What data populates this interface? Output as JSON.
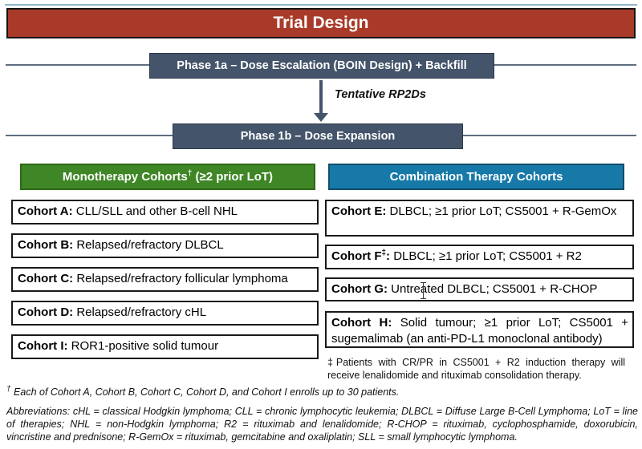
{
  "colors": {
    "banner_red": "#A93A29",
    "slate": "#44546A",
    "green": "#3E8626",
    "blue": "#1779A8"
  },
  "title": "Trial Design",
  "flow": {
    "phase1a": "Phase 1a – Dose Escalation (BOIN Design) + Backfill",
    "arrow_label": "Tentative RP2Ds",
    "phase1b": "Phase 1b – Dose Expansion"
  },
  "monotherapy": {
    "header": {
      "text": "Monotherapy Cohorts",
      "sup": "†",
      "suffix": " (≥2 prior LoT)"
    },
    "cohorts": [
      {
        "bold": "Cohort A",
        "sup": "",
        "colon": ":",
        "desc": " CLL/SLL and other B-cell NHL"
      },
      {
        "bold": "Cohort B",
        "sup": "",
        "colon": ":",
        "desc": " Relapsed/refractory DLBCL"
      },
      {
        "bold": "Cohort C",
        "sup": "",
        "colon": ":",
        "desc": " Relapsed/refractory follicular lymphoma"
      },
      {
        "bold": "Cohort D",
        "sup": "",
        "colon": ":",
        "desc": " Relapsed/refractory cHL"
      },
      {
        "bold": "Cohort I",
        "sup": "",
        "colon": ":",
        "desc": " ROR1-positive solid tumour"
      }
    ]
  },
  "combination": {
    "header": {
      "text": "Combination Therapy Cohorts",
      "sup": "",
      "suffix": ""
    },
    "cohorts": [
      {
        "bold": "Cohort E",
        "sup": "",
        "colon": ":",
        "desc": " DLBCL; ≥1 prior LoT; CS5001 + R-GemOx"
      },
      {
        "bold": "Cohort F",
        "sup": "‡",
        "colon": ":",
        "desc": " DLBCL; ≥1 prior LoT; CS5001 + R2"
      },
      {
        "bold": "Cohort G",
        "sup": "",
        "colon": ":",
        "desc": " Untreated DLBCL; CS5001 + R-CHOP"
      },
      {
        "bold": "Cohort H",
        "sup": "",
        "colon": ":",
        "desc": " Solid tumour; ≥1 prior LoT; CS5001 + sugemalimab (an anti-PD-L1 monoclonal antibody)"
      }
    ],
    "footnote": "‡Patients with CR/PR in CS5001 + R2 induction therapy will receive lenalidomide and rituximab consolidation therapy."
  },
  "footnotes": {
    "dagger_sup": "†",
    "dagger_text": " Each of Cohort A, Cohort B, Cohort C, Cohort D, and Cohort I enrolls up to 30 patients.",
    "abbreviations": "Abbreviations: cHL = classical Hodgkin lymphoma; CLL = chronic lymphocytic leukemia; DLBCL = Diffuse Large B-Cell Lymphoma; LoT = line of therapies; NHL = non-Hodgkin lymphoma; R2 = rituximab and lenalidomide; R-CHOP = rituximab, cyclophosphamide, doxorubicin, vincristine and prednisone; R-GemOx = rituximab, gemcitabine and oxaliplatin; SLL = small lymphocytic lymphoma."
  }
}
